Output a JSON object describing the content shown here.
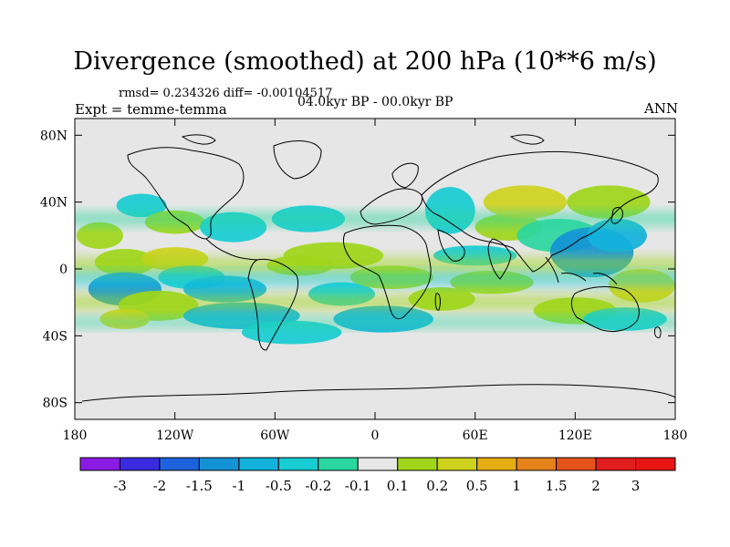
{
  "title": "Divergence (smoothed) at 200 hPa (10**6 m/s)",
  "stats": "rmsd= 0.234326 diff= -0.00104517",
  "experiment": "Expt = temme-temma",
  "period": "04.0kyr BP - 00.0kyr BP",
  "season": "ANN",
  "colors": {
    "background": "#ffffff",
    "ocean_fill": "#e6e6e6",
    "coast": "#000000"
  },
  "map": {
    "lon_ticks": [
      "180",
      "120W",
      "60W",
      "0",
      "60E",
      "120E",
      "180"
    ],
    "lat_ticks": [
      "80N",
      "40N",
      "0",
      "40S",
      "80S"
    ],
    "lon_range": [
      -180,
      180
    ],
    "lat_range": [
      -90,
      90
    ]
  },
  "colorbar": {
    "labels": [
      "-3",
      "-2",
      "-1.5",
      "-1",
      "-0.5",
      "-0.2",
      "-0.1",
      "0.1",
      "0.2",
      "0.5",
      "1",
      "1.5",
      "2",
      "3"
    ],
    "colors": [
      "#8a1be3",
      "#3a2be0",
      "#1c62dc",
      "#1392d6",
      "#12b2dc",
      "#17ccd2",
      "#2ad79f",
      "#e6e6e6",
      "#9fd61b",
      "#cfd21d",
      "#e6ad12",
      "#e5821a",
      "#e5531a",
      "#e21d1d",
      "#e81515"
    ]
  },
  "chart_data": {
    "type": "heatmap",
    "title": "Divergence (smoothed) at 200 hPa (10**6 m/s)",
    "variable": "divergence difference (smoothed)",
    "units": "10**6 m/s",
    "level": "200 hPa",
    "x_range": [
      -180,
      180
    ],
    "y_range": [
      -90,
      90
    ],
    "patches": [
      {
        "lon": -165,
        "lat": 20,
        "width": 14,
        "height": 8,
        "level": 1
      },
      {
        "lon": -150,
        "lat": 4,
        "width": 18,
        "height": 8,
        "level": 1
      },
      {
        "lon": -150,
        "lat": -12,
        "width": 22,
        "height": 10,
        "level": -4
      },
      {
        "lon": -130,
        "lat": -22,
        "width": 24,
        "height": 9,
        "level": 1
      },
      {
        "lon": -150,
        "lat": -30,
        "width": 15,
        "height": 6,
        "level": 2
      },
      {
        "lon": -120,
        "lat": 6,
        "width": 20,
        "height": 7,
        "level": 2
      },
      {
        "lon": -110,
        "lat": -5,
        "width": 20,
        "height": 7,
        "level": -2
      },
      {
        "lon": -140,
        "lat": 38,
        "width": 15,
        "height": 7,
        "level": -2
      },
      {
        "lon": -120,
        "lat": 28,
        "width": 18,
        "height": 7,
        "level": 1
      },
      {
        "lon": -85,
        "lat": 25,
        "width": 20,
        "height": 9,
        "level": -2
      },
      {
        "lon": -90,
        "lat": -12,
        "width": 25,
        "height": 8,
        "level": -3
      },
      {
        "lon": -80,
        "lat": -28,
        "width": 35,
        "height": 8,
        "level": -3
      },
      {
        "lon": -50,
        "lat": -38,
        "width": 30,
        "height": 7,
        "level": -2
      },
      {
        "lon": -40,
        "lat": 30,
        "width": 22,
        "height": 8,
        "level": -2
      },
      {
        "lon": -25,
        "lat": 8,
        "width": 30,
        "height": 8,
        "level": 1
      },
      {
        "lon": -45,
        "lat": 2,
        "width": 20,
        "height": 6,
        "level": 1
      },
      {
        "lon": -20,
        "lat": -15,
        "width": 20,
        "height": 7,
        "level": -2
      },
      {
        "lon": 10,
        "lat": -5,
        "width": 25,
        "height": 7,
        "level": 1
      },
      {
        "lon": 5,
        "lat": -30,
        "width": 30,
        "height": 8,
        "level": -3
      },
      {
        "lon": 40,
        "lat": -18,
        "width": 20,
        "height": 7,
        "level": 1
      },
      {
        "lon": 45,
        "lat": 35,
        "width": 15,
        "height": 14,
        "level": -2
      },
      {
        "lon": 60,
        "lat": 8,
        "width": 25,
        "height": 6,
        "level": -2
      },
      {
        "lon": 70,
        "lat": -8,
        "width": 25,
        "height": 7,
        "level": 1
      },
      {
        "lon": 80,
        "lat": 25,
        "width": 20,
        "height": 8,
        "level": 1
      },
      {
        "lon": 90,
        "lat": 40,
        "width": 25,
        "height": 10,
        "level": 2
      },
      {
        "lon": 110,
        "lat": 20,
        "width": 25,
        "height": 10,
        "level": -1
      },
      {
        "lon": 130,
        "lat": 10,
        "width": 25,
        "height": 15,
        "level": -4
      },
      {
        "lon": 145,
        "lat": 20,
        "width": 18,
        "height": 10,
        "level": -3
      },
      {
        "lon": 140,
        "lat": 40,
        "width": 25,
        "height": 10,
        "level": 1
      },
      {
        "lon": 160,
        "lat": -10,
        "width": 20,
        "height": 10,
        "level": 2
      },
      {
        "lon": 120,
        "lat": -25,
        "width": 25,
        "height": 8,
        "level": 1
      },
      {
        "lon": 150,
        "lat": -30,
        "width": 25,
        "height": 7,
        "level": -2
      }
    ]
  }
}
